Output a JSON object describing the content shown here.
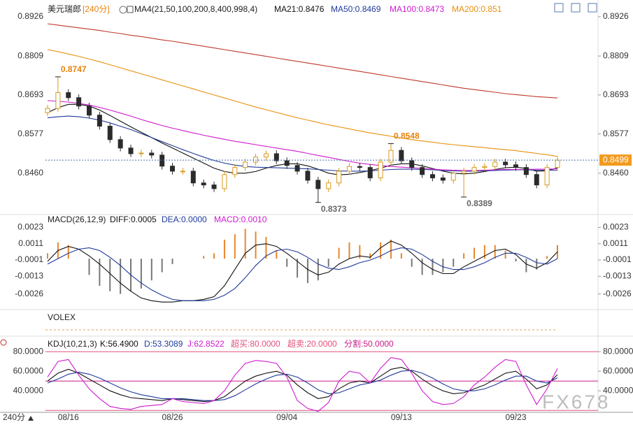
{
  "chart_data": [
    {
      "type": "candlestick",
      "title": "美元瑞郎",
      "subtitle": "[240分]",
      "indicator": "MA4(21,50,100,200,8,400,998,4)",
      "categories": [
        null,
        null,
        "08/16",
        null,
        null,
        null,
        null,
        null,
        null,
        null,
        null,
        null,
        "08/26",
        null,
        null,
        null,
        null,
        null,
        null,
        null,
        null,
        null,
        null,
        "09/04",
        null,
        null,
        null,
        null,
        null,
        null,
        null,
        null,
        null,
        null,
        "09/13",
        null,
        null,
        null,
        null,
        null,
        null,
        null,
        null,
        null,
        null,
        "09/23",
        null,
        null,
        null,
        null
      ],
      "open": [
        0.864,
        0.8653,
        0.87,
        0.8685,
        0.866,
        0.8633,
        0.86,
        0.856,
        0.8535,
        0.8518,
        0.852,
        0.8514,
        0.8481,
        0.8466,
        0.8466,
        0.8431,
        0.8425,
        0.8414,
        0.8456,
        0.8477,
        0.8493,
        0.8508,
        0.8518,
        0.8497,
        0.8483,
        0.8466,
        0.8439,
        0.8414,
        0.8431,
        0.8466,
        0.848,
        0.8477,
        0.8446,
        0.8493,
        0.8528,
        0.8497,
        0.8477,
        0.8456,
        0.8446,
        0.8439,
        0.846,
        0.8466,
        0.8477,
        0.848,
        0.8493,
        0.8485,
        0.8477,
        0.8456,
        0.8425,
        0.8477
      ],
      "high": [
        0.8663,
        0.8747,
        0.871,
        0.8695,
        0.867,
        0.8643,
        0.861,
        0.857,
        0.8545,
        0.853,
        0.853,
        0.8524,
        0.8491,
        0.8476,
        0.8476,
        0.8441,
        0.8435,
        0.8466,
        0.8487,
        0.8503,
        0.8518,
        0.8528,
        0.8528,
        0.8507,
        0.8493,
        0.8476,
        0.8449,
        0.8441,
        0.8476,
        0.849,
        0.849,
        0.8487,
        0.8503,
        0.8548,
        0.8538,
        0.8507,
        0.8487,
        0.8466,
        0.8456,
        0.847,
        0.8476,
        0.8487,
        0.849,
        0.8503,
        0.8503,
        0.8495,
        0.8487,
        0.8466,
        0.8487,
        0.8509
      ],
      "low": [
        0.863,
        0.8643,
        0.8675,
        0.865,
        0.8623,
        0.859,
        0.855,
        0.8525,
        0.8508,
        0.8508,
        0.8504,
        0.8471,
        0.8456,
        0.8456,
        0.8421,
        0.8415,
        0.8404,
        0.8404,
        0.8446,
        0.8467,
        0.8483,
        0.8498,
        0.8487,
        0.8473,
        0.8456,
        0.8429,
        0.8373,
        0.8404,
        0.8421,
        0.8456,
        0.8467,
        0.8436,
        0.8436,
        0.8483,
        0.8487,
        0.8467,
        0.8446,
        0.8436,
        0.8429,
        0.8429,
        0.8389,
        0.8456,
        0.8467,
        0.847,
        0.8475,
        0.8467,
        0.8446,
        0.8415,
        0.8415,
        0.8467
      ],
      "close": [
        0.8653,
        0.87,
        0.8685,
        0.866,
        0.8633,
        0.86,
        0.856,
        0.8535,
        0.8518,
        0.852,
        0.8514,
        0.8481,
        0.8466,
        0.8466,
        0.8431,
        0.8425,
        0.8414,
        0.8456,
        0.8477,
        0.8493,
        0.8508,
        0.8518,
        0.8497,
        0.8483,
        0.8466,
        0.8439,
        0.8414,
        0.8431,
        0.8466,
        0.848,
        0.8477,
        0.8446,
        0.8493,
        0.8528,
        0.8497,
        0.8477,
        0.8456,
        0.8446,
        0.8439,
        0.846,
        0.8466,
        0.8477,
        0.848,
        0.8493,
        0.8485,
        0.8477,
        0.8456,
        0.8425,
        0.8477,
        0.8499
      ],
      "up_color": "#d89a1c",
      "down_color": "#2b2b2b",
      "last_color": "#f39a1e",
      "ylim": [
        0.8341,
        0.8955
      ],
      "yticks": [
        0.8926,
        0.8809,
        0.8693,
        0.8577,
        {
          "value": 0.846,
          "label": "0.8460"
        }
      ],
      "series": [
        {
          "color": "#c0392b",
          "values": [
            0.8905,
            0.8901,
            0.8897,
            0.8893,
            0.8889,
            0.8885,
            0.888,
            0.8876,
            0.8871,
            0.8867,
            0.8862,
            0.8857,
            0.8853,
            0.8848,
            0.8843,
            0.8838,
            0.8833,
            0.8828,
            0.8823,
            0.8818,
            0.8813,
            0.8808,
            0.8803,
            0.8798,
            0.8793,
            0.8788,
            0.8783,
            0.8778,
            0.8773,
            0.8768,
            0.8763,
            0.8758,
            0.8753,
            0.8748,
            0.8743,
            0.8738,
            0.8733,
            0.8728,
            0.8723,
            0.8718,
            0.8713,
            0.8709,
            0.8705,
            0.8701,
            0.8697,
            0.8694,
            0.8691,
            0.8688,
            0.8686,
            0.8684
          ]
        },
        {
          "name": "MA21:0.8476",
          "color": "#111111",
          "values": [
            0.864,
            0.8655,
            0.8665,
            0.8665,
            0.866,
            0.8648,
            0.8632,
            0.8615,
            0.8598,
            0.8582,
            0.8566,
            0.855,
            0.8535,
            0.852,
            0.8505,
            0.849,
            0.8475,
            0.8465,
            0.846,
            0.846,
            0.8465,
            0.8475,
            0.8483,
            0.8488,
            0.8488,
            0.8482,
            0.8472,
            0.846,
            0.8455,
            0.8457,
            0.8462,
            0.8468,
            0.8475,
            0.8484,
            0.8488,
            0.8488,
            0.8482,
            0.8474,
            0.8466,
            0.846,
            0.8458,
            0.846,
            0.8465,
            0.8471,
            0.8476,
            0.8478,
            0.8474,
            0.8466,
            0.8467,
            0.8476
          ]
        },
        {
          "name": "MA50:0.8469",
          "color": "#1f3a9a",
          "values": [
            0.8625,
            0.8628,
            0.863,
            0.8628,
            0.8624,
            0.8618,
            0.861,
            0.86,
            0.859,
            0.8578,
            0.8566,
            0.8554,
            0.8542,
            0.853,
            0.8519,
            0.8508,
            0.8498,
            0.849,
            0.8484,
            0.848,
            0.8478,
            0.8477,
            0.8476,
            0.8475,
            0.8474,
            0.8473,
            0.8471,
            0.8469,
            0.8467,
            0.8466,
            0.8466,
            0.8467,
            0.8469,
            0.8471,
            0.8472,
            0.8472,
            0.8471,
            0.847,
            0.8468,
            0.8467,
            0.8466,
            0.8466,
            0.8467,
            0.8468,
            0.8469,
            0.847,
            0.847,
            0.8469,
            0.8469,
            0.8469
          ]
        },
        {
          "name": "MA100:0.8473",
          "color": "#d01ad0",
          "values": [
            0.8676,
            0.8674,
            0.8672,
            0.8668,
            0.8663,
            0.8656,
            0.8648,
            0.8639,
            0.863,
            0.862,
            0.8611,
            0.8602,
            0.8594,
            0.8587,
            0.858,
            0.8573,
            0.8567,
            0.8561,
            0.8555,
            0.855,
            0.8545,
            0.854,
            0.8535,
            0.853,
            0.8525,
            0.8519,
            0.8513,
            0.8507,
            0.8501,
            0.8495,
            0.849,
            0.8486,
            0.8483,
            0.848,
            0.8478,
            0.8476,
            0.8474,
            0.8472,
            0.847,
            0.8469,
            0.8468,
            0.8468,
            0.8469,
            0.847,
            0.8471,
            0.8471,
            0.8471,
            0.8472,
            0.8472,
            0.8473
          ]
        },
        {
          "name": "MA200:0.851",
          "color": "#e8900c",
          "values": [
            0.8828,
            0.8822,
            0.8815,
            0.8808,
            0.88,
            0.8792,
            0.8783,
            0.8774,
            0.8765,
            0.8756,
            0.8747,
            0.8738,
            0.8729,
            0.872,
            0.8711,
            0.8702,
            0.8693,
            0.8684,
            0.8675,
            0.8666,
            0.8657,
            0.8649,
            0.8641,
            0.8633,
            0.8625,
            0.8618,
            0.8611,
            0.8604,
            0.8598,
            0.8592,
            0.8586,
            0.858,
            0.8575,
            0.857,
            0.8565,
            0.856,
            0.8556,
            0.8552,
            0.8548,
            0.8545,
            0.8542,
            0.8539,
            0.8536,
            0.8533,
            0.853,
            0.8527,
            0.8523,
            0.8519,
            0.8515,
            0.851
          ]
        }
      ]
    },
    {
      "type": "macd",
      "title": "MACD(26,12,9)",
      "ylim": [
        -0.0036,
        0.0032
      ],
      "yticks": [
        0.0023,
        0.0011,
        -0.0001,
        -0.0013,
        -0.0026
      ],
      "up_color": "#e8862a",
      "down_color": "#777777",
      "series": [
        {
          "name": "DIFF:0.0005",
          "color": "#111111",
          "values": [
            -0.0002,
            0.0006,
            0.0009,
            0.0007,
            0.0002,
            -0.0004,
            -0.0011,
            -0.0018,
            -0.0024,
            -0.0029,
            -0.0031,
            -0.0032,
            -0.0032,
            -0.0031,
            -0.0031,
            -0.003,
            -0.0028,
            -0.002,
            -0.0008,
            0.0004,
            0.001,
            0.0011,
            0.0009,
            0.0004,
            -0.0002,
            -0.0008,
            -0.0012,
            -0.001,
            -0.0004,
            0.0,
            0.0002,
            0.0001,
            0.0008,
            0.0013,
            0.001,
            0.0004,
            -0.0003,
            -0.0008,
            -0.0011,
            -0.0011,
            -0.0006,
            -0.0002,
            0.0002,
            0.0006,
            0.0007,
            0.0003,
            -0.0004,
            -0.0007,
            -0.0003,
            0.0005
          ]
        },
        {
          "name": "DEA:0.0000",
          "color": "#1f3a9a",
          "values": [
            -0.0004,
            0.0,
            0.0004,
            0.0007,
            0.0008,
            0.0006,
            0.0001,
            -0.0005,
            -0.0012,
            -0.0018,
            -0.0023,
            -0.0027,
            -0.003,
            -0.0031,
            -0.0031,
            -0.0031,
            -0.003,
            -0.0027,
            -0.0022,
            -0.0014,
            -0.0005,
            0.0002,
            0.0006,
            0.0007,
            0.0005,
            0.0001,
            -0.0004,
            -0.0007,
            -0.0008,
            -0.0006,
            -0.0003,
            -0.0001,
            0.0002,
            0.0006,
            0.0008,
            0.0007,
            0.0003,
            -0.0002,
            -0.0006,
            -0.0008,
            -0.0008,
            -0.0006,
            -0.0003,
            0.0001,
            0.0004,
            0.0004,
            0.0001,
            -0.0003,
            -0.0004,
            0.0
          ]
        },
        {
          "name": "MACD:0.0010",
          "color": "#d01ad0",
          "values": [
            0.0004,
            0.0012,
            0.001,
            0.0,
            -0.0012,
            -0.002,
            -0.0024,
            -0.0026,
            -0.0024,
            -0.0022,
            -0.0016,
            -0.001,
            -0.0004,
            0.0,
            0.0,
            0.0002,
            0.0004,
            0.0014,
            0.0018,
            0.0022,
            0.002,
            0.0016,
            0.0006,
            -0.0006,
            -0.0014,
            -0.0018,
            -0.0016,
            -0.0006,
            0.0008,
            0.0012,
            0.001,
            0.0004,
            0.0012,
            0.0014,
            0.0004,
            -0.0006,
            -0.0012,
            -0.0012,
            -0.001,
            -0.0006,
            0.0004,
            0.0008,
            0.001,
            0.001,
            0.0006,
            -0.0002,
            -0.001,
            -0.0008,
            0.0002,
            0.001
          ]
        }
      ]
    },
    {
      "type": "indicator",
      "title": "VOLEX"
    },
    {
      "type": "line",
      "title": "KDJ(10,21,3)",
      "ylim": [
        18,
        93
      ],
      "yticks": [
        {
          "value": 80,
          "label": "80.0000"
        },
        {
          "value": 60,
          "label": "60.0000"
        },
        {
          "value": 40,
          "label": "40.0000"
        }
      ],
      "levels": [
        {
          "label": "超买:80.0000",
          "value": 80,
          "color": "#e0507a"
        },
        {
          "label": "超卖:20.0000",
          "value": 20,
          "color": "#e0507a"
        },
        {
          "label": "分割:50.0000",
          "value": 50,
          "color": "#c81a8a"
        }
      ],
      "series": [
        {
          "name": "K:56.4900",
          "color": "#111111",
          "values": [
            50,
            58,
            62,
            58,
            52,
            46,
            40,
            36,
            33,
            32,
            31,
            30,
            32,
            31,
            30,
            29,
            30,
            34,
            42,
            50,
            55,
            58,
            60,
            56,
            46,
            38,
            32,
            34,
            42,
            48,
            50,
            48,
            55,
            62,
            64,
            60,
            52,
            45,
            40,
            37,
            38,
            42,
            46,
            52,
            58,
            60,
            52,
            42,
            46,
            56.49
          ]
        },
        {
          "name": "D:53.3089",
          "color": "#1f3a9a",
          "values": [
            48,
            52,
            57,
            59,
            57,
            53,
            48,
            43,
            39,
            36,
            34,
            32,
            32,
            32,
            31,
            30,
            30,
            31,
            35,
            41,
            47,
            52,
            56,
            57,
            54,
            48,
            41,
            37,
            38,
            42,
            46,
            48,
            51,
            56,
            60,
            61,
            58,
            53,
            47,
            42,
            40,
            40,
            42,
            46,
            51,
            55,
            55,
            50,
            48,
            53.3089
          ]
        },
        {
          "name": "J:62.8522",
          "color": "#d01ad0",
          "values": [
            54,
            70,
            72,
            56,
            42,
            32,
            24,
            22,
            21,
            24,
            25,
            26,
            32,
            29,
            28,
            27,
            30,
            40,
            56,
            68,
            71,
            70,
            68,
            54,
            30,
            22,
            19,
            28,
            50,
            60,
            58,
            48,
            63,
            74,
            72,
            58,
            40,
            29,
            26,
            27,
            34,
            46,
            54,
            64,
            72,
            70,
            46,
            26,
            42,
            62.8522
          ]
        }
      ]
    }
  ],
  "footer": {
    "period": "240分"
  },
  "watermark": "FX678"
}
